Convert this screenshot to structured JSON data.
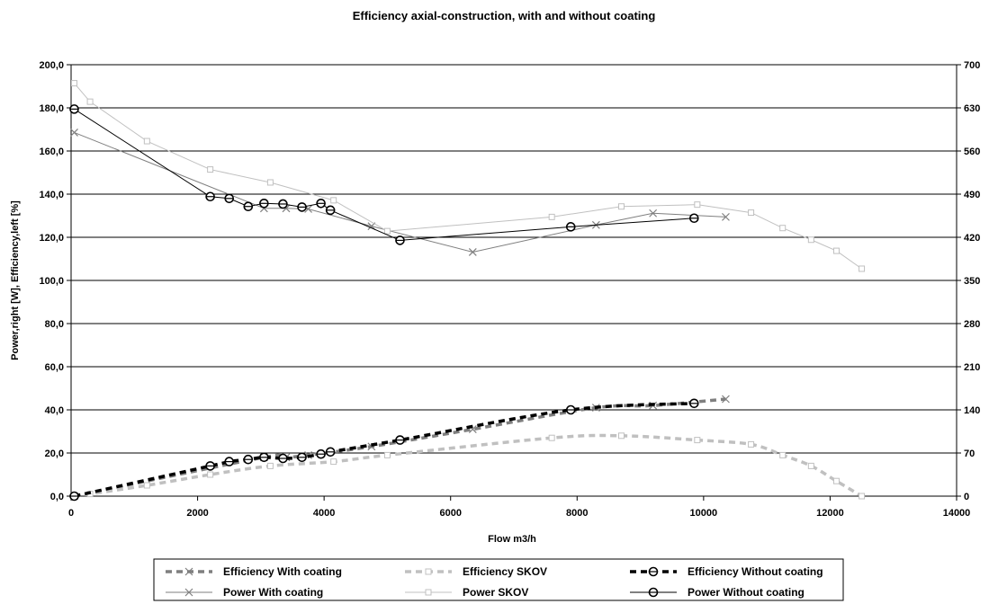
{
  "chart_data": {
    "type": "line",
    "title": "Efficiency axial-construction, with and without coating",
    "xlabel": "Flow m3/h",
    "ylabel_left": "Power,right [W], Efficiency,left [%]",
    "xlim": [
      0,
      14000
    ],
    "ylim_left": [
      0,
      200
    ],
    "ylim_right": [
      0,
      700
    ],
    "x_ticks": [
      "0",
      "2000",
      "4000",
      "6000",
      "8000",
      "10000",
      "12000",
      "14000"
    ],
    "y_left_ticks": [
      "0,0",
      "20,0",
      "40,0",
      "60,0",
      "80,0",
      "100,0",
      "120,0",
      "140,0",
      "160,0",
      "180,0",
      "200,0"
    ],
    "y_right_ticks": [
      "0",
      "70",
      "140",
      "210",
      "280",
      "350",
      "420",
      "490",
      "560",
      "630",
      "700"
    ],
    "grid": "horizontal",
    "legend_position": "bottom",
    "series": [
      {
        "name": "Efficiency With coating",
        "axis": "left",
        "color": "#7f7f7f",
        "line": "dashed",
        "marker": "x",
        "x": [
          50,
          3050,
          3400,
          3750,
          4750,
          6350,
          8300,
          9200,
          10350
        ],
        "y": [
          0,
          18,
          18,
          19,
          23,
          31,
          41,
          42,
          45
        ]
      },
      {
        "name": "Efficiency SKOV",
        "axis": "left",
        "color": "#c0c0c0",
        "line": "dashed",
        "marker": "square",
        "x": [
          50,
          300,
          1200,
          2200,
          3150,
          4150,
          5000,
          7600,
          8700,
          9900,
          10750,
          11250,
          11700,
          12100,
          12500
        ],
        "y": [
          0,
          1,
          5,
          10,
          14,
          16,
          19,
          27,
          28,
          26,
          24,
          19,
          14,
          7,
          0
        ]
      },
      {
        "name": "Efficiency Without coating",
        "axis": "left",
        "color": "#000000",
        "line": "dashed",
        "marker": "circle",
        "x": [
          50,
          2200,
          2500,
          2800,
          3050,
          3350,
          3650,
          3950,
          4100,
          5200,
          7900,
          9850
        ],
        "y": [
          0,
          14,
          16,
          17,
          18,
          17.5,
          18,
          19.5,
          20.5,
          26,
          40,
          43
        ]
      },
      {
        "name": "Power With coating",
        "axis": "right",
        "color": "#7f7f7f",
        "line": "solid",
        "marker": "x",
        "x": [
          50,
          3050,
          3400,
          3750,
          4750,
          6350,
          8300,
          9200,
          10350
        ],
        "y": [
          590,
          467,
          467,
          466,
          438,
          396,
          440,
          459,
          453
        ]
      },
      {
        "name": "Power SKOV",
        "axis": "right",
        "color": "#c0c0c0",
        "line": "solid",
        "marker": "square",
        "x": [
          50,
          300,
          1200,
          2200,
          3150,
          4150,
          5000,
          7600,
          8700,
          9900,
          10750,
          11250,
          11700,
          12100,
          12500
        ],
        "y": [
          670,
          640,
          576,
          530,
          509,
          480,
          430,
          453,
          470,
          473,
          460,
          435,
          416,
          398,
          369
        ]
      },
      {
        "name": "Power Without coating",
        "axis": "right",
        "color": "#000000",
        "line": "solid",
        "marker": "circle",
        "x": [
          50,
          2200,
          2500,
          2800,
          3050,
          3350,
          3650,
          3950,
          4100,
          5200,
          7900,
          9850
        ],
        "y": [
          628,
          486,
          483,
          470,
          475,
          474,
          469,
          475,
          464,
          415,
          437,
          451
        ]
      }
    ]
  }
}
